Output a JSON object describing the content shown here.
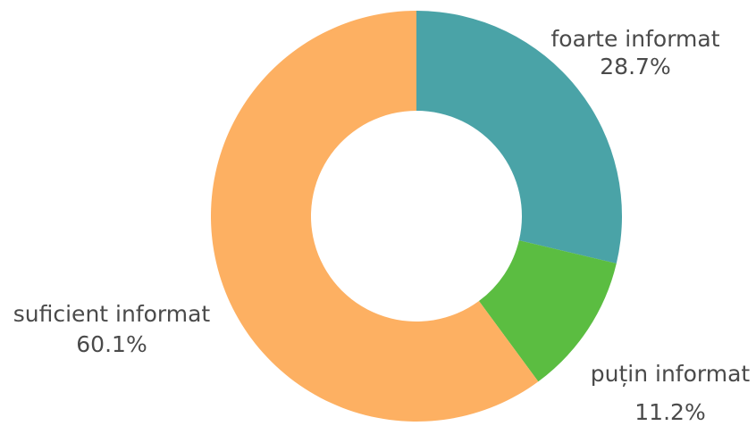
{
  "chart_data": {
    "type": "pie",
    "title": "",
    "slices": [
      {
        "label": "foarte informat",
        "value": 28.7,
        "value_label": "28.7%",
        "color": "#4aa3a7"
      },
      {
        "label": "puțin informat",
        "value": 11.2,
        "value_label": "11.2%",
        "color": "#5bbd41"
      },
      {
        "label": "suficient informat",
        "value": 60.1,
        "value_label": "60.1%",
        "color": "#fdb062"
      }
    ],
    "donut": true,
    "legend": "none",
    "start_angle": "top",
    "direction": "clockwise"
  }
}
